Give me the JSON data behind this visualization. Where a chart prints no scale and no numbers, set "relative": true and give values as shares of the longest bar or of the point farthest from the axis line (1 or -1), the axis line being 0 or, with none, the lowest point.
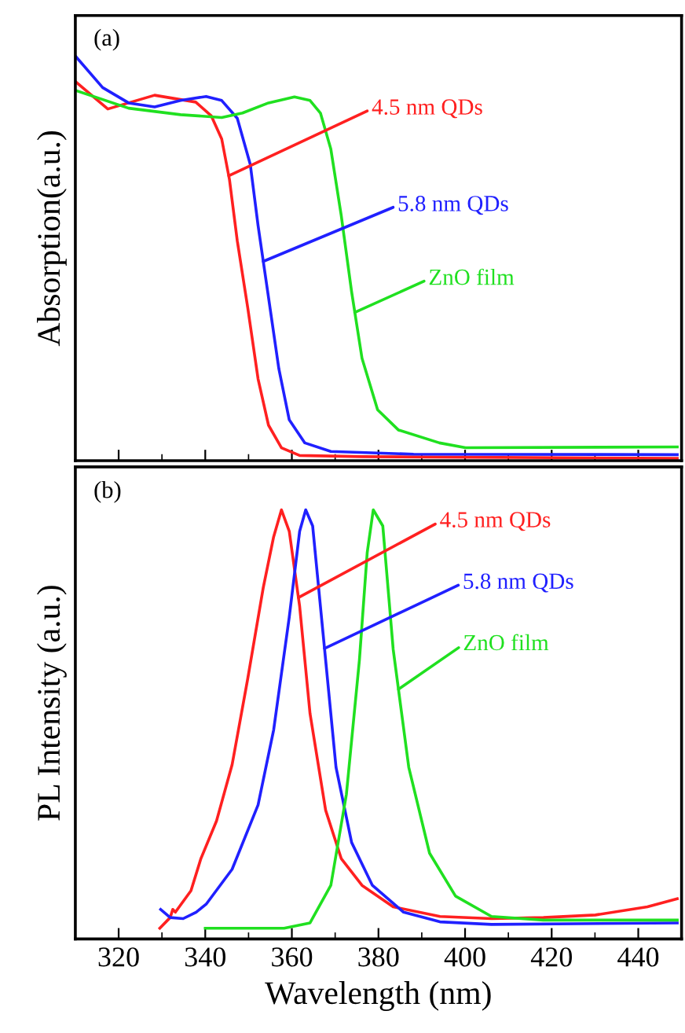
{
  "chart_data": [
    {
      "type": "line",
      "title": "(a)",
      "ylabel": "Absorption(a.u.)",
      "relative": true,
      "xlim": [
        310,
        450
      ],
      "xticks": [
        320,
        340,
        360,
        380,
        400,
        420,
        440
      ],
      "tick_labels": false,
      "legend": false,
      "grid": false,
      "series": [
        {
          "name": "4.5 nm QDs",
          "color": "#ff2020",
          "x": [
            310,
            317.5,
            328.3,
            337.8,
            341.4,
            343.8,
            345.6,
            347.4,
            349.8,
            352.2,
            354.6,
            357.6,
            361.8,
            376.2,
            449
          ],
          "values": [
            0.937,
            0.869,
            0.903,
            0.886,
            0.852,
            0.795,
            0.694,
            0.543,
            0.379,
            0.202,
            0.088,
            0.032,
            0.013,
            0.01,
            0.006
          ]
        },
        {
          "name": "5.8 nm QDs",
          "color": "#2020ff",
          "x": [
            310,
            316.3,
            322.3,
            328.3,
            334.3,
            340.2,
            343.8,
            347.4,
            350.4,
            352.2,
            354.6,
            357.0,
            359.4,
            363.0,
            369.0,
            388.1,
            449
          ],
          "values": [
            1.0,
            0.922,
            0.884,
            0.874,
            0.89,
            0.9,
            0.89,
            0.846,
            0.732,
            0.581,
            0.404,
            0.227,
            0.101,
            0.044,
            0.023,
            0.016,
            0.015
          ]
        },
        {
          "name": "ZnO film",
          "color": "#20e020",
          "x": [
            310,
            322.3,
            334.3,
            343.8,
            348.6,
            354.6,
            360.6,
            364.2,
            366.6,
            369.0,
            371.4,
            373.8,
            376.2,
            379.8,
            384.6,
            394.1,
            400.1,
            449
          ],
          "values": [
            0.915,
            0.871,
            0.855,
            0.848,
            0.859,
            0.884,
            0.899,
            0.89,
            0.859,
            0.77,
            0.606,
            0.417,
            0.253,
            0.126,
            0.076,
            0.044,
            0.032,
            0.034
          ]
        }
      ]
    },
    {
      "type": "line",
      "title": "(b)",
      "xlabel": "Wavelength (nm)",
      "ylabel": "PL Intensity (a.u.)",
      "relative": true,
      "xlim": [
        310,
        450
      ],
      "xticks": [
        320,
        340,
        360,
        380,
        400,
        420,
        440
      ],
      "tick_labels": "x",
      "legend": false,
      "grid": false,
      "series": [
        {
          "name": "4.5 nm QDs",
          "color": "#ff2020",
          "x": [
            329.5,
            331.9,
            332.5,
            333.1,
            336.7,
            339.0,
            342.6,
            346.2,
            349.8,
            353.4,
            355.8,
            357.6,
            359.4,
            361.8,
            364.2,
            367.8,
            371.4,
            376.2,
            383.4,
            394.2,
            406.1,
            418.1,
            430.1,
            442.1,
            449
          ],
          "values": [
            0.025,
            0.05,
            0.069,
            0.0625,
            0.1125,
            0.1875,
            0.275,
            0.406,
            0.606,
            0.819,
            0.9375,
            1.0,
            0.95,
            0.775,
            0.525,
            0.3,
            0.1875,
            0.125,
            0.075,
            0.0525,
            0.0475,
            0.05,
            0.056,
            0.075,
            0.094
          ]
        },
        {
          "name": "5.8 nm QDs",
          "color": "#2020ff",
          "x": [
            329.7,
            331.9,
            334.9,
            337.9,
            340.2,
            346.2,
            352.2,
            355.8,
            359.4,
            361.8,
            363.2,
            364.8,
            367.2,
            370.2,
            373.8,
            378.6,
            385.8,
            394.2,
            406.1,
            449
          ],
          "values": [
            0.069,
            0.05,
            0.0475,
            0.0625,
            0.081,
            0.1625,
            0.3125,
            0.4875,
            0.75,
            0.95,
            1.0,
            0.9625,
            0.7125,
            0.4,
            0.225,
            0.125,
            0.0625,
            0.04,
            0.034,
            0.0375
          ]
        },
        {
          "name": "ZnO film",
          "color": "#20e020",
          "x": [
            340.0,
            358.2,
            364.2,
            369.0,
            372.6,
            375.6,
            377.4,
            378.8,
            381.0,
            383.4,
            387.0,
            391.8,
            397.8,
            406.1,
            418.1,
            449
          ],
          "values": [
            0.025,
            0.025,
            0.0375,
            0.125,
            0.3375,
            0.65,
            0.9,
            1.0,
            0.9625,
            0.675,
            0.4,
            0.2,
            0.1,
            0.0525,
            0.044,
            0.044
          ]
        }
      ]
    }
  ]
}
